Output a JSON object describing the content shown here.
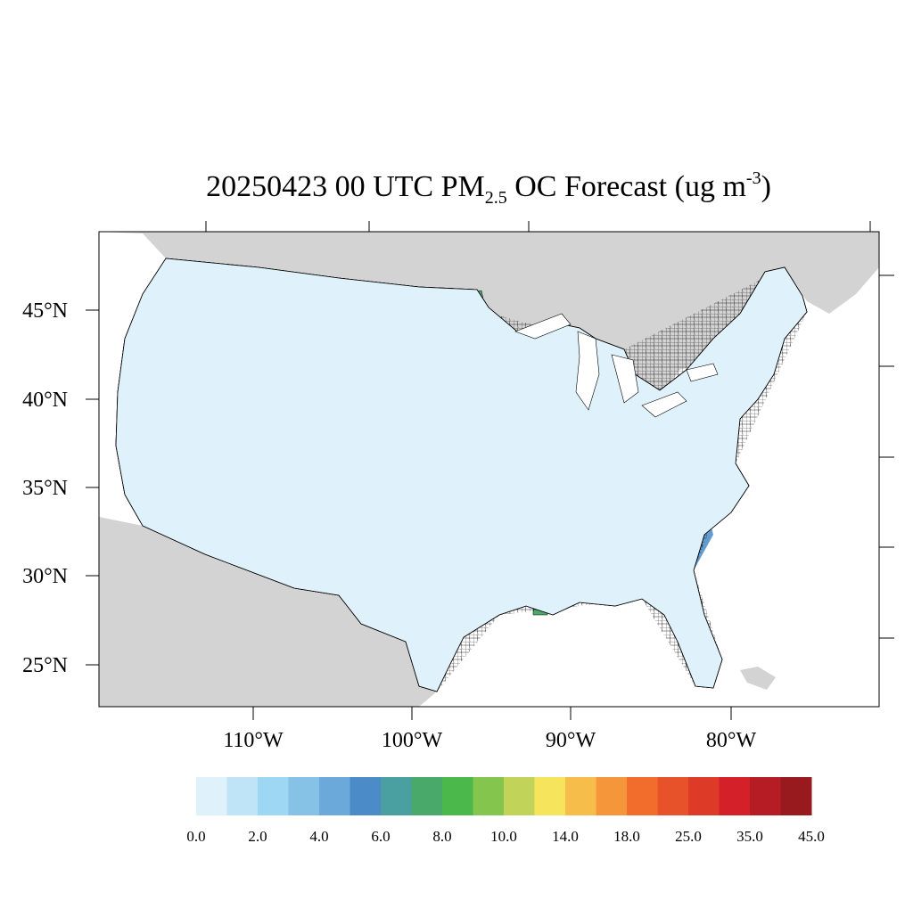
{
  "title": {
    "main": "20250423 00 UTC PM",
    "sub": "2.5",
    "mid": " OC Forecast (ug m",
    "sup": "-3",
    "end": ")"
  },
  "map": {
    "lat_labels": [
      "45°N",
      "40°N",
      "35°N",
      "30°N",
      "25°N"
    ],
    "lon_labels": [
      "110°W",
      "100°W",
      "90°W",
      "80°W"
    ],
    "colors": {
      "background_land": "#d3d3d3",
      "water": "#ffffff",
      "low": "#dff2fb",
      "mid": "#8ec8ea",
      "high": "#4a8bc8",
      "border": "#000000"
    }
  },
  "legend": {
    "colors": [
      "#dff2fb",
      "#bfe4f7",
      "#9dd7f3",
      "#86c1e6",
      "#6aa9da",
      "#4a8bc8",
      "#4a9fa0",
      "#48a96a",
      "#4ab84a",
      "#84c54d",
      "#c2d35a",
      "#f6e55c",
      "#f6bd4a",
      "#f5963a",
      "#f26d2c",
      "#e8522b",
      "#dd3a28",
      "#d42029",
      "#b51c24",
      "#991a1e"
    ],
    "labels": [
      "0.0",
      "2.0",
      "4.0",
      "6.0",
      "8.0",
      "10.0",
      "14.0",
      "18.0",
      "25.0",
      "35.0",
      "45.0"
    ]
  }
}
